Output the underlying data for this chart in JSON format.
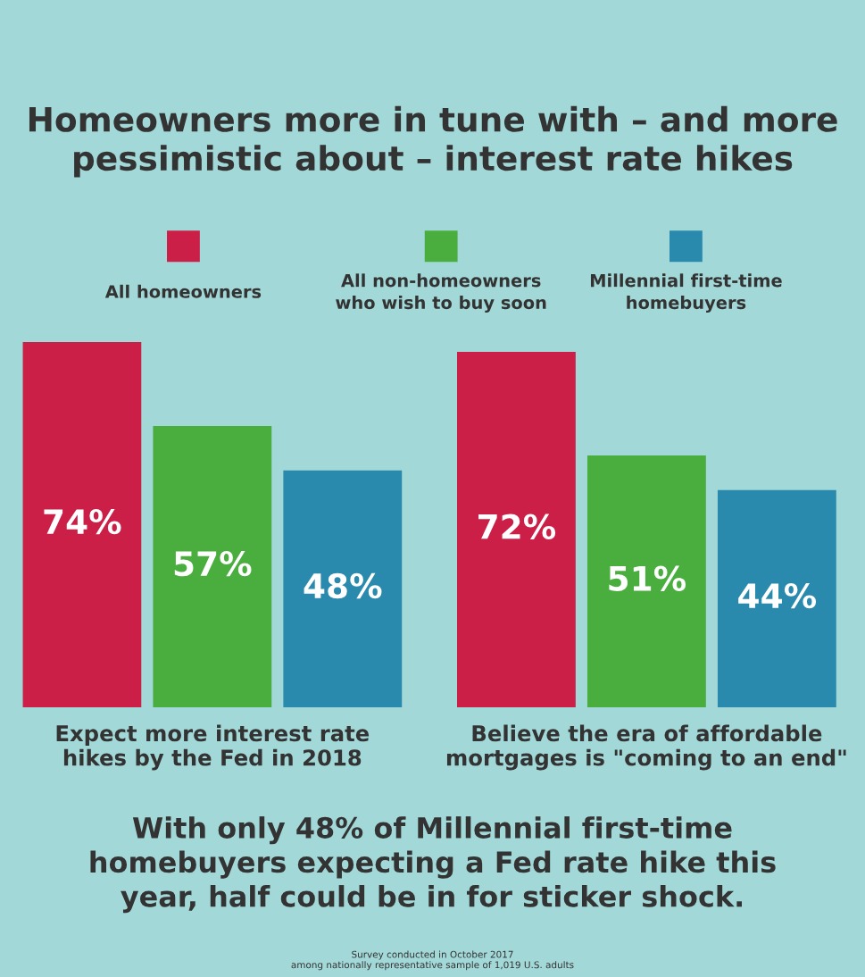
{
  "chart_data": {
    "type": "bar",
    "title": "Homeowners more in tune with – and more\npessimistic about – interest rate hikes",
    "categories": [
      "Expect more interest rate\nhikes by the Fed in 2018",
      "Believe the era of affordable\nmortgages is \"coming to an end\""
    ],
    "series": [
      {
        "name": "All homeowners",
        "color": "#cb1f48",
        "values": [
          74,
          72
        ],
        "value_labels": [
          "74%",
          "72%"
        ]
      },
      {
        "name": "All non-homeowners\nwho wish to buy soon",
        "color": "#4aae3f",
        "values": [
          57,
          51
        ],
        "value_labels": [
          "57%",
          "51%"
        ]
      },
      {
        "name": "Millennial first-time\nhomebuyers",
        "color": "#2a8aae",
        "values": [
          48,
          44
        ],
        "value_labels": [
          "48%",
          "44%"
        ]
      }
    ],
    "legend": "top",
    "grid": false,
    "annotations": [
      "With only 48% of Millennial first-time\nhomebuyers expecting a Fed rate hike this\nyear, half could be in for sticker shock.",
      "Survey conducted in October 2017\namong nationally representative sample of 1,019 U.S. adults"
    ]
  }
}
